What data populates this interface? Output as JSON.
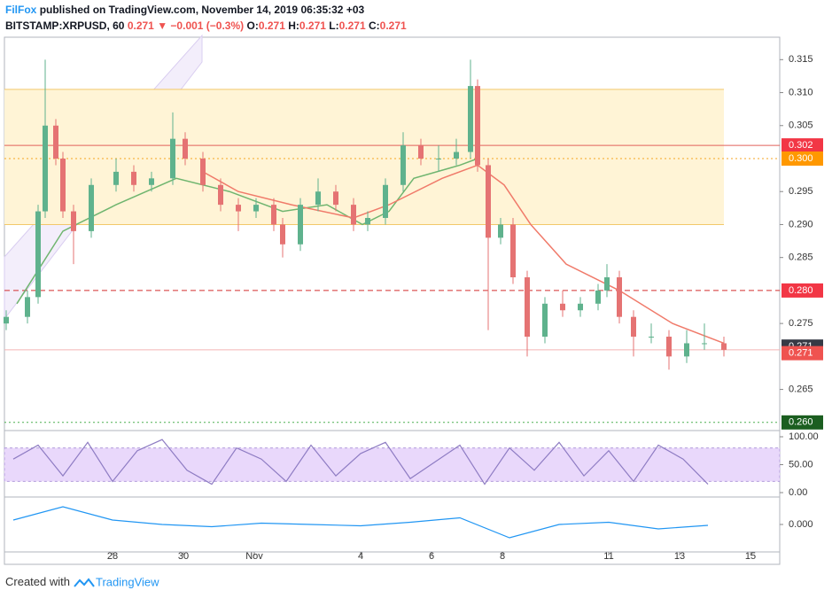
{
  "header": {
    "author": "FilFox",
    "published": "published on TradingView.com, November 14, 2019 06:35:32 +03",
    "symbol": "BITSTAMP:XRPUSD, 60",
    "last": "0.271",
    "arrow": "▼",
    "change": "−0.001 (−0.3%)",
    "ohlc": [
      {
        "label": "O:",
        "value": "0.271"
      },
      {
        "label": "H:",
        "value": "0.271"
      },
      {
        "label": "L:",
        "value": "0.271"
      },
      {
        "label": "C:",
        "value": "0.271"
      }
    ]
  },
  "footer": {
    "created": "Created with",
    "brand": "TradingView"
  },
  "chart_data": {
    "type": "candlestick",
    "xlim": [
      24.95,
      46.825
    ],
    "xticks": [
      {
        "value": 28,
        "label": "28"
      },
      {
        "value": 30,
        "label": "30"
      },
      {
        "value": 32,
        "label": "Nov"
      },
      {
        "value": 35,
        "label": "4"
      },
      {
        "value": 37,
        "label": "6"
      },
      {
        "value": 39,
        "label": "8"
      },
      {
        "value": 42,
        "label": "11"
      },
      {
        "value": 44,
        "label": "13"
      },
      {
        "value": 46,
        "label": "15"
      }
    ],
    "ylim": [
      0.2589,
      0.3184
    ],
    "yticks": [
      0.315,
      {
        "value": 0.31,
        "label": "0.310"
      },
      0.305,
      0.295,
      {
        "value": 0.29,
        "label": "0.290"
      },
      0.285,
      0.275,
      0.265
    ],
    "up_color": "#5fb28d",
    "down_color": "#e57373",
    "x": [
      25.0,
      25.6,
      25.9,
      26.1,
      26.4,
      26.6,
      26.9,
      27.4,
      28.1,
      28.6,
      29.1,
      29.7,
      30.05,
      30.55,
      31.05,
      31.55,
      32.05,
      32.55,
      32.8,
      33.3,
      33.8,
      34.3,
      34.8,
      35.2,
      35.7,
      36.2,
      36.7,
      37.2,
      37.7,
      38.1,
      38.3,
      38.6,
      38.95,
      39.3,
      39.7,
      40.2,
      40.7,
      41.2,
      41.7,
      41.95,
      42.3,
      42.7,
      43.2,
      43.7,
      44.2,
      44.7,
      45.25
    ],
    "open": [
      0.275,
      0.276,
      0.279,
      0.292,
      0.305,
      0.3,
      0.292,
      0.289,
      0.296,
      0.298,
      0.296,
      0.297,
      0.303,
      0.3,
      0.296,
      0.293,
      0.292,
      0.293,
      0.29,
      0.287,
      0.293,
      0.295,
      0.293,
      0.29,
      0.291,
      0.296,
      0.302,
      0.3,
      0.3,
      0.301,
      0.311,
      0.299,
      0.288,
      0.29,
      0.282,
      0.273,
      0.278,
      0.277,
      0.278,
      0.28,
      0.282,
      0.276,
      0.273,
      0.273,
      0.27,
      0.272,
      0.272
    ],
    "high": [
      0.277,
      0.28,
      0.293,
      0.315,
      0.306,
      0.301,
      0.293,
      0.297,
      0.3,
      0.299,
      0.298,
      0.307,
      0.304,
      0.301,
      0.297,
      0.294,
      0.294,
      0.294,
      0.291,
      0.294,
      0.297,
      0.296,
      0.294,
      0.292,
      0.297,
      0.304,
      0.303,
      0.302,
      0.303,
      0.315,
      0.312,
      0.3,
      0.291,
      0.291,
      0.283,
      0.279,
      0.28,
      0.279,
      0.281,
      0.284,
      0.283,
      0.277,
      0.275,
      0.274,
      0.274,
      0.275,
      0.273
    ],
    "low": [
      0.274,
      0.275,
      0.278,
      0.291,
      0.299,
      0.291,
      0.284,
      0.288,
      0.295,
      0.295,
      0.295,
      0.296,
      0.299,
      0.295,
      0.292,
      0.289,
      0.291,
      0.289,
      0.285,
      0.286,
      0.292,
      0.292,
      0.289,
      0.289,
      0.29,
      0.295,
      0.299,
      0.298,
      0.299,
      0.3,
      0.298,
      0.274,
      0.287,
      0.281,
      0.27,
      0.272,
      0.276,
      0.276,
      0.277,
      0.279,
      0.275,
      0.27,
      0.272,
      0.268,
      0.269,
      0.271,
      0.27
    ],
    "close": [
      0.276,
      0.279,
      0.292,
      0.305,
      0.3,
      0.292,
      0.289,
      0.296,
      0.298,
      0.296,
      0.297,
      0.303,
      0.3,
      0.296,
      0.293,
      0.292,
      0.293,
      0.29,
      0.287,
      0.293,
      0.295,
      0.293,
      0.29,
      0.291,
      0.296,
      0.302,
      0.3,
      0.3,
      0.301,
      0.311,
      0.299,
      0.288,
      0.29,
      0.282,
      0.273,
      0.278,
      0.277,
      0.278,
      0.28,
      0.282,
      0.276,
      0.273,
      0.273,
      0.27,
      0.272,
      0.272,
      0.271
    ],
    "ma": [
      {
        "color": "#6fb56f",
        "x": [
          25.3,
          26.6,
          28.1,
          29.8,
          31.3,
          32.8,
          34.05,
          35.05,
          35.8,
          36.5,
          37.8,
          38.3
        ],
        "values": [
          0.278,
          0.289,
          0.293,
          0.297,
          0.295,
          0.292,
          0.293,
          0.29,
          0.292,
          0.297,
          0.299,
          0.3
        ]
      },
      {
        "color": "#f07a6a",
        "x": [
          30.55,
          31.55,
          33.05,
          34.8,
          35.8,
          37.3,
          38.3,
          39.05,
          39.8,
          40.8,
          42.3,
          43.8,
          45.25
        ],
        "values": [
          0.298,
          0.295,
          0.293,
          0.291,
          0.293,
          0.297,
          0.299,
          0.296,
          0.29,
          0.284,
          0.28,
          0.275,
          0.272
        ]
      }
    ],
    "zone": {
      "x": [
        24.95,
        45.25
      ],
      "values": [
        0.29,
        0.3105
      ],
      "color": "#fff4d6",
      "edge": "#f3c86a"
    },
    "levels": [
      {
        "value": 0.302,
        "color": "#e0605a",
        "style": "solid"
      },
      {
        "value": 0.3,
        "color": "#f5a623",
        "style": "dotted"
      },
      {
        "value": 0.28,
        "color": "#d32f2f",
        "style": "dashed"
      },
      {
        "value": 0.271,
        "color": "#f4b4b4",
        "style": "solid"
      },
      {
        "value": 0.26,
        "color": "#4caf50",
        "style": "dotted"
      }
    ],
    "price_labels": [
      {
        "value": 0.302,
        "label": "0.302",
        "color": "#f23645"
      },
      {
        "value": 0.3,
        "label": "0.300",
        "color": "#ff9800"
      },
      {
        "value": 0.28,
        "label": "0.280",
        "color": "#f23645"
      },
      {
        "value": 0.2715,
        "label": "0.271",
        "color": "#363a45"
      },
      {
        "value": 0.2705,
        "label": "0.271",
        "color": "#ef5350"
      },
      {
        "value": 0.26,
        "label": "0.260",
        "color": "#1b5e20"
      }
    ],
    "stoch": {
      "ylim": [
        -6.3,
        109.5
      ],
      "yticks": [
        {
          "value": 100,
          "label": "100.00"
        },
        {
          "value": 50,
          "label": "50.00"
        },
        {
          "value": 0,
          "label": "0.00"
        }
      ],
      "band": [
        20,
        80
      ],
      "color": "#8e7cc3",
      "x": [
        25.2,
        25.9,
        26.6,
        27.3,
        28.0,
        28.7,
        29.4,
        30.1,
        30.8,
        31.5,
        32.2,
        32.9,
        33.6,
        34.3,
        35.0,
        35.7,
        36.4,
        37.1,
        37.8,
        38.5,
        39.2,
        39.9,
        40.6,
        41.3,
        42.0,
        42.7,
        43.4,
        44.1,
        44.8
      ],
      "values": [
        60,
        85,
        30,
        90,
        20,
        75,
        95,
        40,
        15,
        80,
        60,
        20,
        85,
        30,
        70,
        90,
        25,
        55,
        85,
        15,
        80,
        40,
        90,
        30,
        75,
        20,
        85,
        60,
        15
      ]
    },
    "macd": {
      "ylim": [
        -0.006,
        0.006
      ],
      "yticks": [
        {
          "value": 0,
          "label": "0.000"
        }
      ],
      "color": "#2196f3",
      "x": [
        25.2,
        26.6,
        28.0,
        29.4,
        30.8,
        32.2,
        33.6,
        35.0,
        36.4,
        37.8,
        39.2,
        40.6,
        42.0,
        43.4,
        44.8
      ],
      "values": [
        0.001,
        0.004,
        0.001,
        0.0,
        -0.0005,
        0.0003,
        0,
        -0.0003,
        0.0005,
        0.0015,
        -0.003,
        0.0,
        0.0005,
        -0.001,
        -0.0002
      ]
    }
  }
}
